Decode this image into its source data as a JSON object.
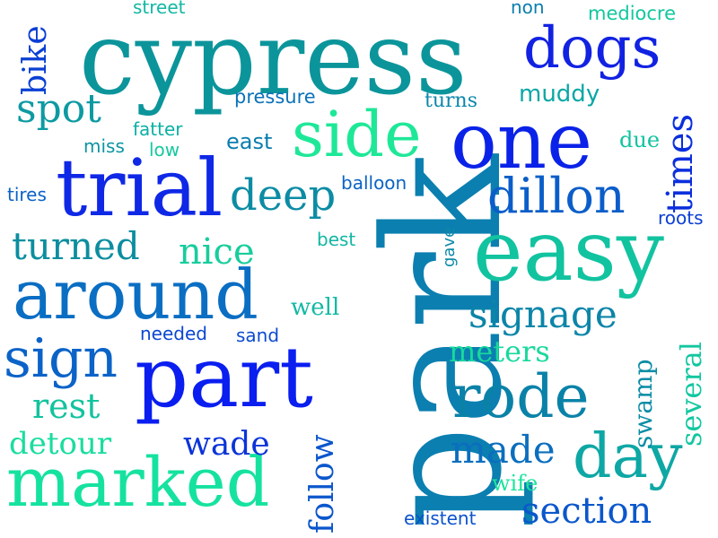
{
  "words": [
    {
      "text": "park",
      "color": "#0b7fb0"
    },
    {
      "text": "cypress",
      "color": "#0b959b"
    },
    {
      "text": "trial",
      "color": "#0f28e6"
    },
    {
      "text": "part",
      "color": "#0a1ef0"
    },
    {
      "text": "one",
      "color": "#0a22e8"
    },
    {
      "text": "easy",
      "color": "#12c3a0"
    },
    {
      "text": "marked",
      "color": "#16e2a0"
    },
    {
      "text": "around",
      "color": "#0a6ec3"
    },
    {
      "text": "side",
      "color": "#1ee898"
    },
    {
      "text": "dogs",
      "color": "#1222e2"
    },
    {
      "text": "rode",
      "color": "#0a82a8"
    },
    {
      "text": "day",
      "color": "#0ea7a5"
    },
    {
      "text": "sign",
      "color": "#0b63c8"
    },
    {
      "text": "dillon",
      "color": "#0b5ec9"
    },
    {
      "text": "signage",
      "color": "#0b85a8"
    },
    {
      "text": "deep",
      "color": "#0c8ca4"
    },
    {
      "text": "turned",
      "color": "#0b8e9f"
    },
    {
      "text": "nice",
      "color": "#18cd9d"
    },
    {
      "text": "section",
      "color": "#0b57cc"
    },
    {
      "text": "made",
      "color": "#0b6ebe"
    },
    {
      "text": "spot",
      "color": "#0d9aa2"
    },
    {
      "text": "times",
      "color": "#0b2fdd"
    },
    {
      "text": "detour",
      "color": "#18dd9e"
    },
    {
      "text": "rest",
      "color": "#12c39e"
    },
    {
      "text": "follow",
      "color": "#0b56cc"
    },
    {
      "text": "wade",
      "color": "#0b34d8"
    },
    {
      "text": "several",
      "color": "#12c7a0"
    },
    {
      "text": "meters",
      "color": "#18d99c"
    },
    {
      "text": "swamp",
      "color": "#0b8da5"
    },
    {
      "text": "bike",
      "color": "#0a3fd4"
    },
    {
      "text": "muddy",
      "color": "#0ba7a6"
    },
    {
      "text": "wife",
      "color": "#1de49b"
    },
    {
      "text": "east",
      "color": "#0b7eaf"
    },
    {
      "text": "well",
      "color": "#12b9a3"
    },
    {
      "text": "due",
      "color": "#12c3a0"
    },
    {
      "text": "pressure",
      "color": "#0b72b8"
    },
    {
      "text": "turns",
      "color": "#0b86ab"
    },
    {
      "text": "fatter",
      "color": "#0bb0a5"
    },
    {
      "text": "low",
      "color": "#16c8a0"
    },
    {
      "text": "miss",
      "color": "#0b95a3"
    },
    {
      "text": "tires",
      "color": "#0b62c6"
    },
    {
      "text": "balloon",
      "color": "#0b63c4"
    },
    {
      "text": "best",
      "color": "#12b7a3"
    },
    {
      "text": "gave",
      "color": "#0b8aa8"
    },
    {
      "text": "needed",
      "color": "#0b47d2"
    },
    {
      "text": "sand",
      "color": "#0b4bd0"
    },
    {
      "text": "existent",
      "color": "#0b52cc"
    },
    {
      "text": "roots",
      "color": "#0b3ed6"
    },
    {
      "text": "street",
      "color": "#12b7a3"
    },
    {
      "text": "non",
      "color": "#0b7eaf"
    },
    {
      "text": "mediocre",
      "color": "#12c79f"
    }
  ]
}
